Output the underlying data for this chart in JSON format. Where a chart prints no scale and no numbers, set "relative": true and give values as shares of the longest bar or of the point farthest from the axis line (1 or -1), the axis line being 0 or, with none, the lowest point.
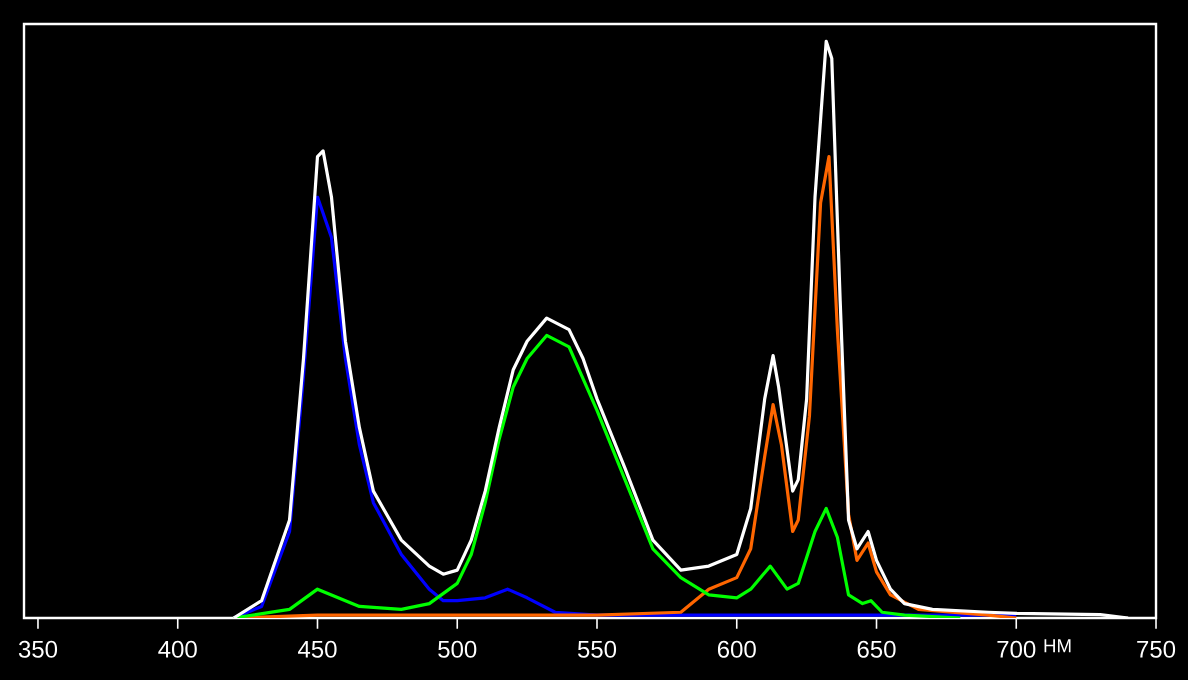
{
  "chart_data": {
    "type": "line",
    "relative": true,
    "xlabel": "НМ",
    "xlim": [
      345,
      750
    ],
    "xticks": [
      350,
      400,
      450,
      500,
      550,
      600,
      650,
      700,
      750
    ],
    "tick_labels": "x",
    "marker": "none",
    "line_style": "solid",
    "series": [
      {
        "color": "#0000ff",
        "x": [
          420,
          430,
          440,
          445,
          450,
          455,
          460,
          465,
          470,
          480,
          490,
          495,
          500,
          510,
          518,
          525,
          535,
          550,
          600,
          700
        ],
        "values": [
          0,
          0.02,
          0.15,
          0.42,
          0.73,
          0.66,
          0.45,
          0.3,
          0.2,
          0.11,
          0.05,
          0.03,
          0.03,
          0.035,
          0.05,
          0.035,
          0.01,
          0.005,
          0.005,
          0.005
        ]
      },
      {
        "color": "#ff6600",
        "x": [
          420,
          450,
          500,
          550,
          580,
          590,
          600,
          605,
          610,
          613,
          616,
          620,
          622,
          626,
          630,
          633,
          636,
          640,
          643,
          647,
          650,
          655,
          665,
          690,
          700
        ],
        "values": [
          0,
          0.005,
          0.005,
          0.005,
          0.01,
          0.05,
          0.07,
          0.12,
          0.28,
          0.37,
          0.3,
          0.15,
          0.17,
          0.35,
          0.72,
          0.8,
          0.5,
          0.18,
          0.1,
          0.13,
          0.08,
          0.04,
          0.015,
          0.005,
          0
        ]
      },
      {
        "color": "#00ff00",
        "x": [
          420,
          440,
          450,
          455,
          465,
          480,
          490,
          500,
          505,
          510,
          515,
          520,
          525,
          532,
          540,
          550,
          560,
          570,
          580,
          590,
          600,
          605,
          612,
          618,
          622,
          628,
          632,
          636,
          640,
          645,
          648,
          652,
          660,
          680
        ],
        "values": [
          0,
          0.015,
          0.05,
          0.04,
          0.02,
          0.015,
          0.025,
          0.06,
          0.11,
          0.2,
          0.31,
          0.4,
          0.45,
          0.49,
          0.47,
          0.36,
          0.24,
          0.12,
          0.07,
          0.04,
          0.035,
          0.05,
          0.09,
          0.05,
          0.06,
          0.15,
          0.19,
          0.14,
          0.04,
          0.025,
          0.03,
          0.01,
          0.005,
          0
        ]
      },
      {
        "color": "#ffffff",
        "x": [
          420,
          430,
          440,
          445,
          450,
          452,
          455,
          460,
          465,
          470,
          480,
          490,
          495,
          500,
          505,
          510,
          515,
          520,
          525,
          532,
          540,
          545,
          550,
          560,
          570,
          580,
          590,
          600,
          605,
          610,
          613,
          615,
          620,
          622,
          625,
          628,
          632,
          634,
          637,
          640,
          643,
          647,
          650,
          655,
          660,
          670,
          690,
          700,
          730,
          740
        ],
        "values": [
          0,
          0.03,
          0.17,
          0.45,
          0.8,
          0.81,
          0.73,
          0.48,
          0.33,
          0.22,
          0.135,
          0.09,
          0.076,
          0.083,
          0.135,
          0.22,
          0.33,
          0.43,
          0.48,
          0.52,
          0.5,
          0.45,
          0.38,
          0.26,
          0.135,
          0.083,
          0.09,
          0.11,
          0.19,
          0.38,
          0.455,
          0.4,
          0.22,
          0.24,
          0.38,
          0.73,
          1,
          0.97,
          0.55,
          0.17,
          0.12,
          0.15,
          0.1,
          0.05,
          0.025,
          0.015,
          0.01,
          0.008,
          0.006,
          0
        ]
      }
    ]
  }
}
